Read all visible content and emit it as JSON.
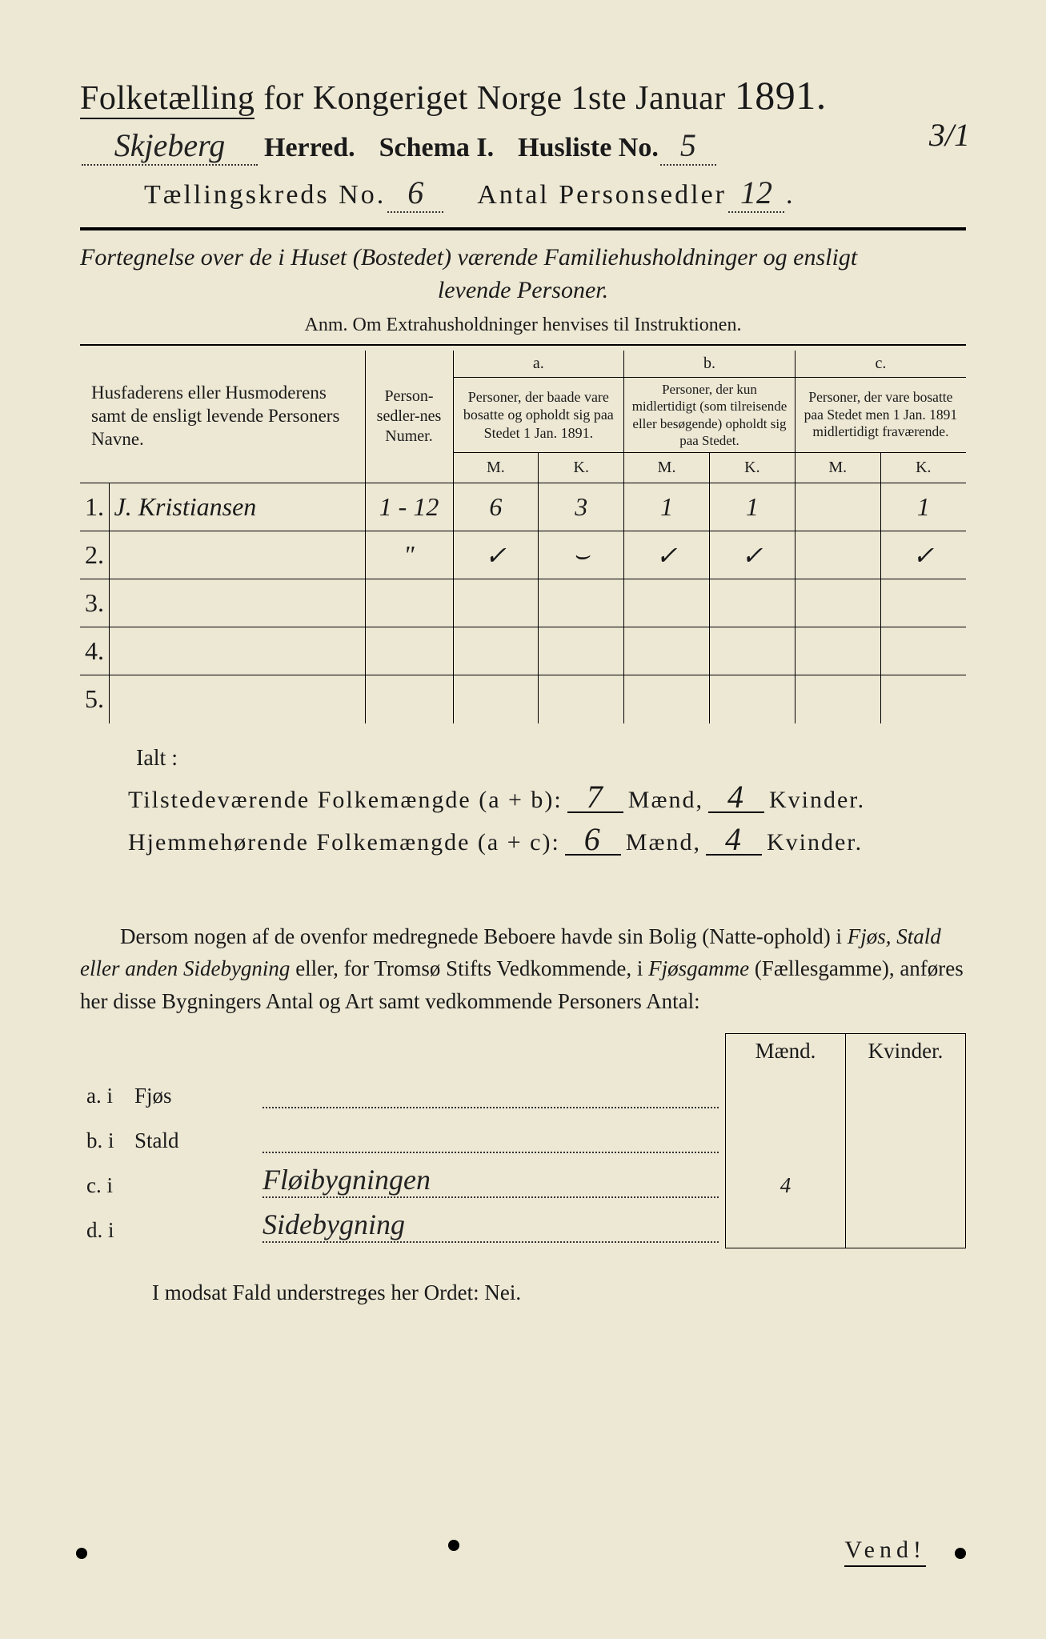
{
  "paper_bg": "#ede8d4",
  "title": {
    "main_a": "Folketælling",
    "main_b": "for Kongeriget Norge 1ste Januar",
    "year": "1891."
  },
  "header": {
    "herred_value": "Skjeberg",
    "herred_label": "Herred.",
    "schema_label": "Schema I.",
    "husliste_label": "Husliste No.",
    "husliste_value": "5",
    "margin_fraction": "3/1",
    "kreds_label": "Tællingskreds No.",
    "kreds_value": "6",
    "antal_label": "Antal Personsedler",
    "antal_value": "12"
  },
  "subtitle": {
    "line1": "Fortegnelse over de i Huset (Bostedet) værende Familiehusholdninger og ensligt",
    "line2": "levende Personer.",
    "anm": "Anm.  Om Extrahusholdninger henvises til Instruktionen."
  },
  "table": {
    "col_name": "Husfaderens eller Husmoderens samt de ensligt levende Personers Navne.",
    "col_num": "Person-sedler-nes Numer.",
    "col_a_h": "a.",
    "col_a": "Personer, der baade vare bosatte og opholdt sig paa Stedet 1 Jan. 1891.",
    "col_b_h": "b.",
    "col_b": "Personer, der kun midlertidigt (som tilreisende eller besøgende) opholdt sig paa Stedet.",
    "col_c_h": "c.",
    "col_c": "Personer, der vare bosatte paa Stedet men 1 Jan. 1891 midlertidigt fraværende.",
    "M": "M.",
    "K": "K.",
    "rows": [
      {
        "n": "1.",
        "name": "J. Kristiansen",
        "num": "1 - 12",
        "aM": "6",
        "aK": "3",
        "bM": "1",
        "bK": "1",
        "cM": "",
        "cK": "1"
      },
      {
        "n": "2.",
        "name": "",
        "num": "\"",
        "aM": "✓",
        "aK": "⌣",
        "bM": "✓",
        "bK": "✓",
        "cM": "",
        "cK": "✓"
      },
      {
        "n": "3.",
        "name": "",
        "num": "",
        "aM": "",
        "aK": "",
        "bM": "",
        "bK": "",
        "cM": "",
        "cK": ""
      },
      {
        "n": "4.",
        "name": "",
        "num": "",
        "aM": "",
        "aK": "",
        "bM": "",
        "bK": "",
        "cM": "",
        "cK": ""
      },
      {
        "n": "5.",
        "name": "",
        "num": "",
        "aM": "",
        "aK": "",
        "bM": "",
        "bK": "",
        "cM": "",
        "cK": ""
      }
    ]
  },
  "totals": {
    "ialt": "Ialt :",
    "line1_label": "Tilstedeværende  Folkemængde (a + b):",
    "line1_m": "7",
    "line1_k": "4",
    "line2_label": "Hjemmehørende  Folkemængde (a + c):",
    "line2_m": "6",
    "line2_k": "4",
    "maend": "Mænd,",
    "kvinder": "Kvinder."
  },
  "para": {
    "text_a": "Dersom nogen af de ovenfor medregnede Beboere havde sin Bolig (Natte-ophold) i ",
    "ital_a": "Fjøs, Stald eller anden Sidebygning",
    "text_b": " eller, for Tromsø Stifts Vedkommende, i ",
    "ital_b": "Fjøsgamme",
    "text_c": " (Fællesgamme), anføres her disse Bygningers Antal og Art samt vedkommende Personers Antal:"
  },
  "byg": {
    "maend": "Mænd.",
    "kvinder": "Kvinder.",
    "rows": [
      {
        "l": "a.  i",
        "t": "Fjøs",
        "fill": "",
        "m": "",
        "k": ""
      },
      {
        "l": "b.  i",
        "t": "Stald",
        "fill": "",
        "m": "",
        "k": ""
      },
      {
        "l": "c.  i",
        "t": "",
        "fill": "Fløibygningen",
        "m": "4",
        "k": ""
      },
      {
        "l": "d.  i",
        "t": "",
        "fill": "Sidebygning",
        "m": "",
        "k": ""
      }
    ]
  },
  "modsat": "I modsat Fald understreges her Ordet: Nei.",
  "vend": "Vend!"
}
